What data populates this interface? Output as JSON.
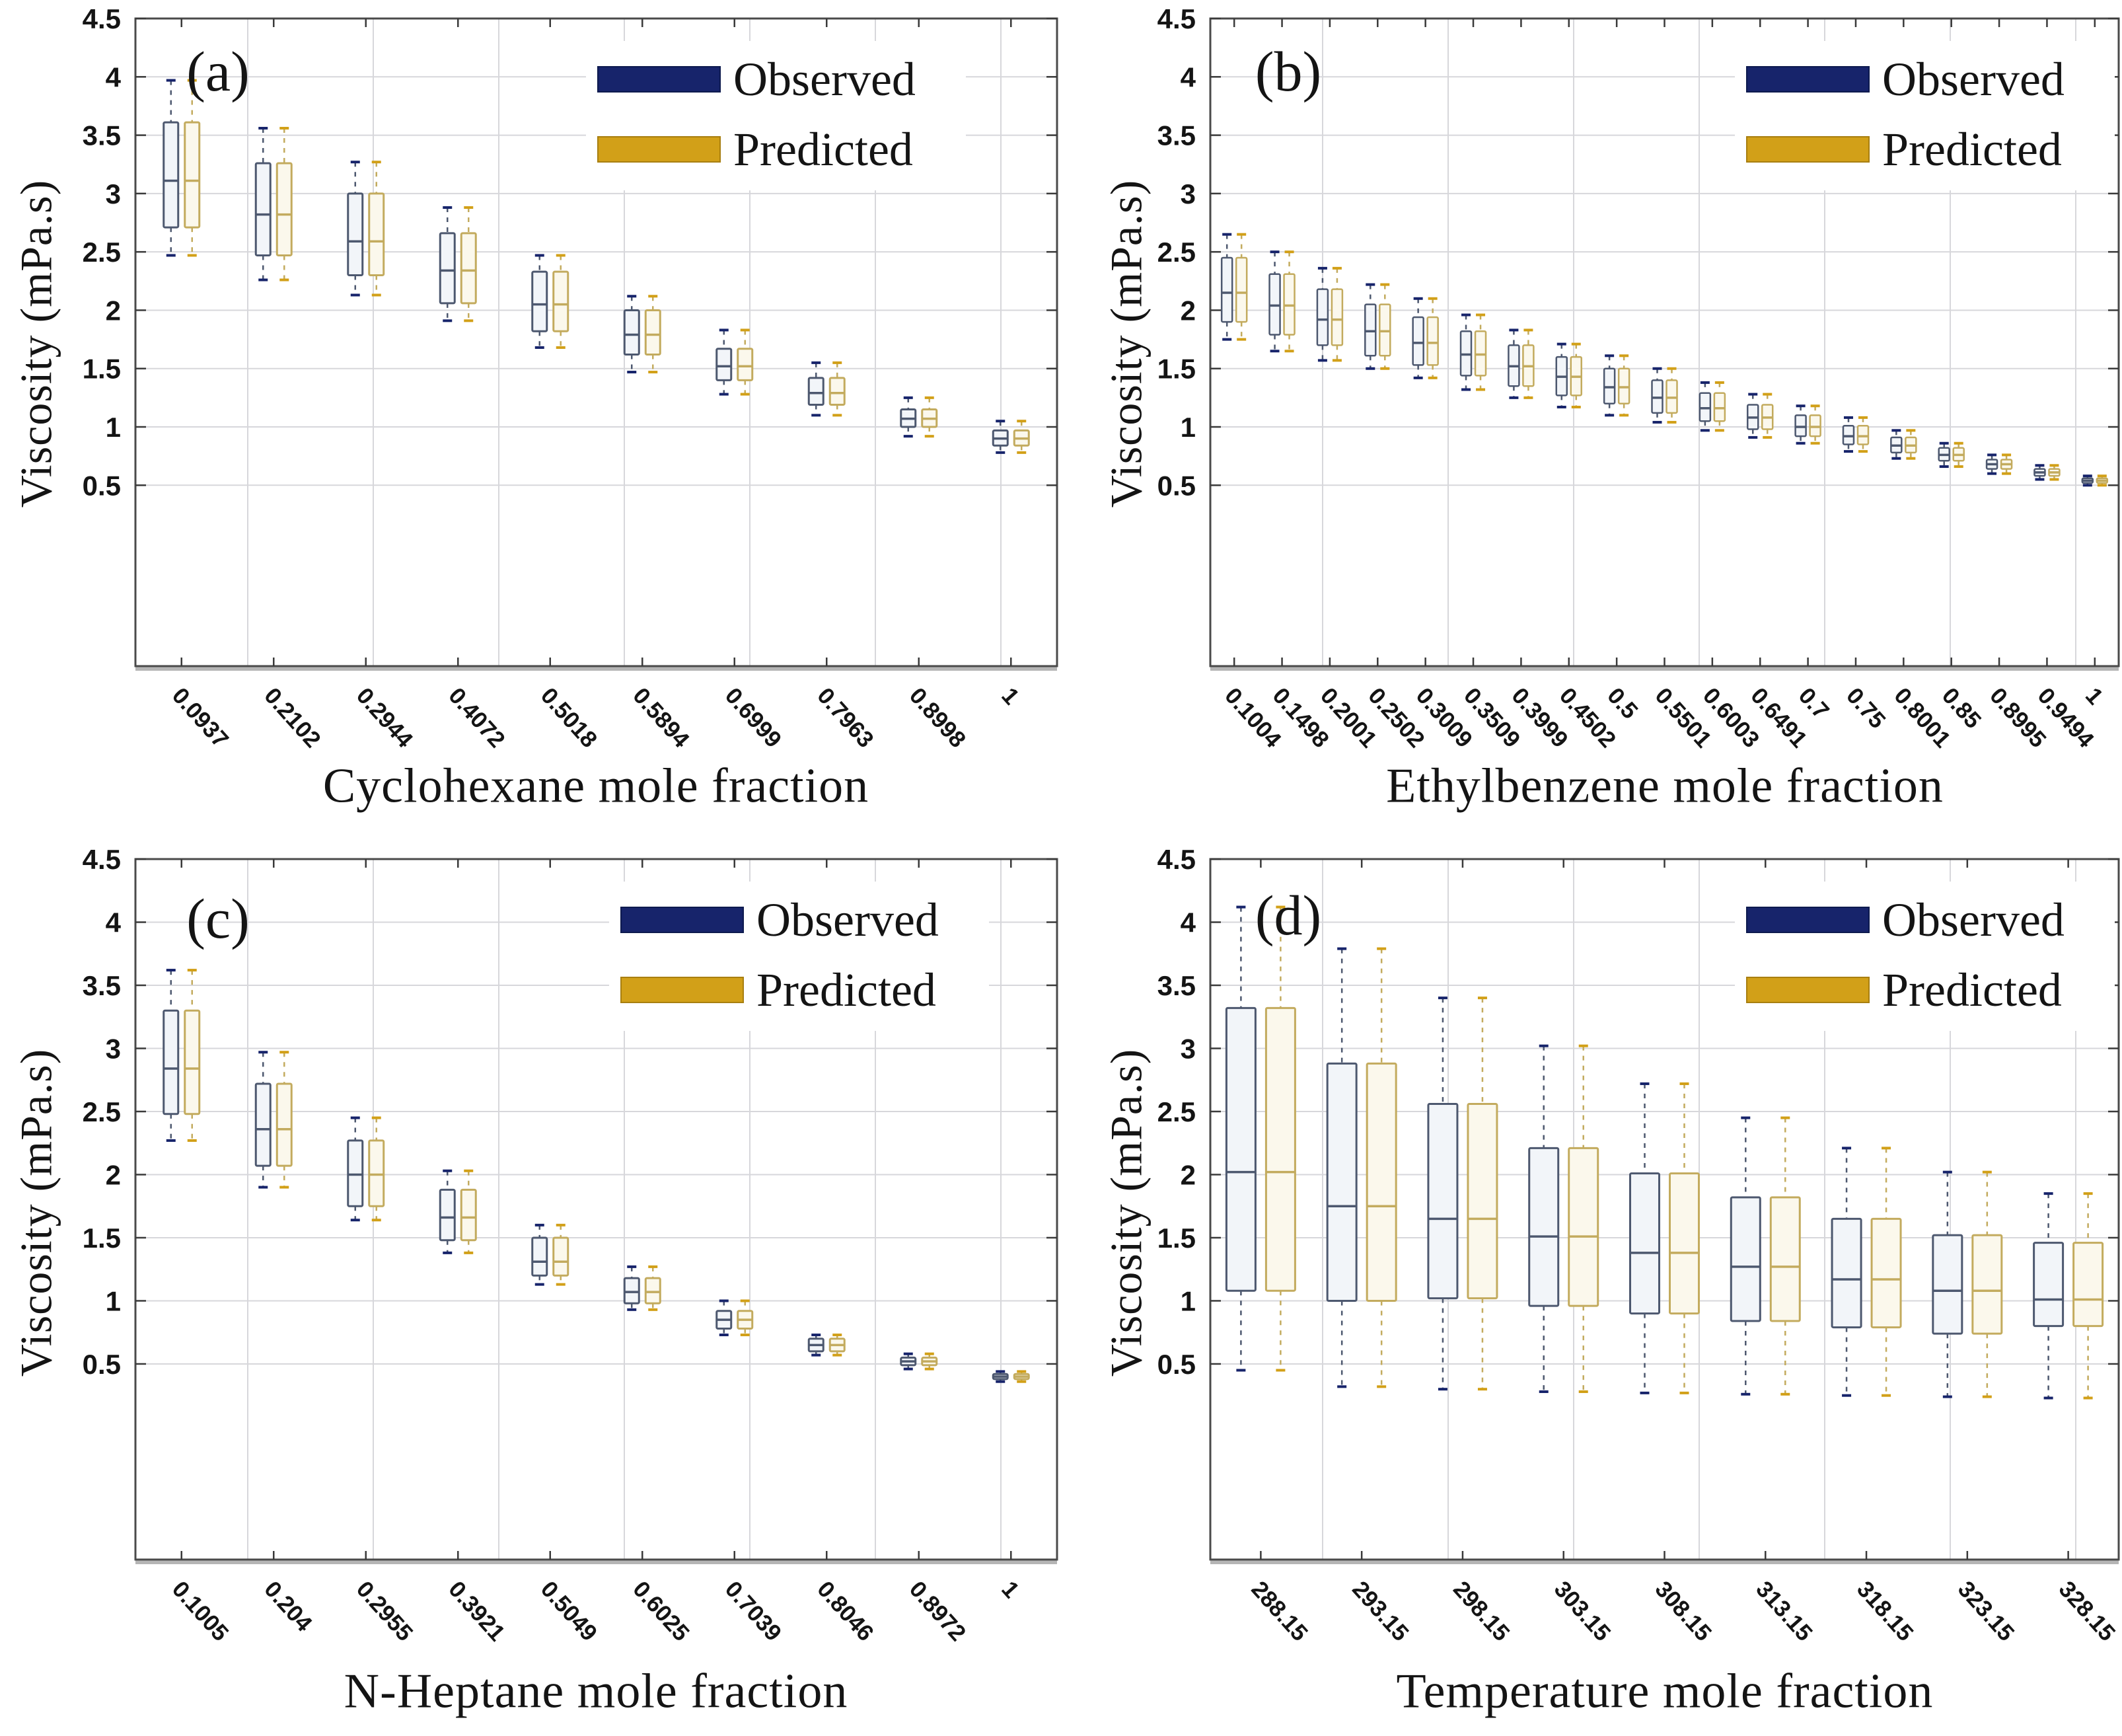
{
  "figure": {
    "background": "#ffffff",
    "legend": {
      "observed_label": "Observed",
      "predicted_label": "Predicted"
    },
    "colors": {
      "observed_solid": "#17246b",
      "predicted_solid": "#d2a018",
      "observed_box_border": "#4d586f",
      "predicted_box_border": "#c3ab5e",
      "observed_box_fill": "#f2f5f9",
      "predicted_box_fill": "#fbf8ec",
      "grid": "#d7d7db",
      "frame": "#4a4a4a",
      "axis_shadow": "#b5b5b5",
      "tick": "#3a3a3a",
      "text": "#141414"
    }
  },
  "chart_data": [
    {
      "id": "a",
      "type": "boxplot",
      "panel_label": "(a)",
      "ylabel": "Viscosity (mPa.s)",
      "xlabel": "Cyclohexane mole fraction",
      "ylim": [
        -1.05,
        4.5
      ],
      "yticks": [
        0.5,
        1,
        1.5,
        2,
        2.5,
        3,
        3.5,
        4,
        4.5
      ],
      "grid": "on",
      "legend_position": "top-right",
      "series": [
        "Observed",
        "Predicted"
      ],
      "series_share_values": true,
      "categories": [
        "0.0937",
        "0.2102",
        "0.2944",
        "0.4072",
        "0.5018",
        "0.5894",
        "0.6999",
        "0.7963",
        "0.8998",
        "1"
      ],
      "boxes": [
        {
          "lo": 2.47,
          "q1": 2.71,
          "med": 3.11,
          "q3": 3.61,
          "hi": 3.97
        },
        {
          "lo": 2.26,
          "q1": 2.47,
          "med": 2.82,
          "q3": 3.26,
          "hi": 3.56
        },
        {
          "lo": 2.13,
          "q1": 2.3,
          "med": 2.59,
          "q3": 3.0,
          "hi": 3.27
        },
        {
          "lo": 1.91,
          "q1": 2.06,
          "med": 2.34,
          "q3": 2.66,
          "hi": 2.88
        },
        {
          "lo": 1.68,
          "q1": 1.82,
          "med": 2.05,
          "q3": 2.33,
          "hi": 2.47
        },
        {
          "lo": 1.47,
          "q1": 1.62,
          "med": 1.79,
          "q3": 2.0,
          "hi": 2.12
        },
        {
          "lo": 1.28,
          "q1": 1.4,
          "med": 1.52,
          "q3": 1.67,
          "hi": 1.83
        },
        {
          "lo": 1.1,
          "q1": 1.19,
          "med": 1.29,
          "q3": 1.42,
          "hi": 1.55
        },
        {
          "lo": 0.92,
          "q1": 1.0,
          "med": 1.07,
          "q3": 1.15,
          "hi": 1.25
        },
        {
          "lo": 0.78,
          "q1": 0.84,
          "med": 0.9,
          "q3": 0.97,
          "hi": 1.05
        }
      ]
    },
    {
      "id": "b",
      "type": "boxplot",
      "panel_label": "(b)",
      "ylabel": "Viscosity (mPa.s)",
      "xlabel": "Ethylbenzene mole fraction",
      "ylim": [
        -1.05,
        4.5
      ],
      "yticks": [
        0.5,
        1,
        1.5,
        2,
        2.5,
        3,
        3.5,
        4,
        4.5
      ],
      "grid": "on",
      "legend_position": "top-right",
      "series": [
        "Observed",
        "Predicted"
      ],
      "series_share_values": true,
      "categories": [
        "0.1004",
        "0.1498",
        "0.2001",
        "0.2502",
        "0.3009",
        "0.3509",
        "0.3999",
        "0.4502",
        "0.5",
        "0.5501",
        "0.6003",
        "0.6491",
        "0.7",
        "0.75",
        "0.8001",
        "0.85",
        "0.8995",
        "0.9494",
        "1"
      ],
      "boxes": [
        {
          "lo": 1.75,
          "q1": 1.9,
          "med": 2.15,
          "q3": 2.45,
          "hi": 2.65
        },
        {
          "lo": 1.65,
          "q1": 1.79,
          "med": 2.04,
          "q3": 2.31,
          "hi": 2.5
        },
        {
          "lo": 1.57,
          "q1": 1.7,
          "med": 1.92,
          "q3": 2.18,
          "hi": 2.36
        },
        {
          "lo": 1.5,
          "q1": 1.61,
          "med": 1.82,
          "q3": 2.05,
          "hi": 2.22
        },
        {
          "lo": 1.42,
          "q1": 1.53,
          "med": 1.72,
          "q3": 1.94,
          "hi": 2.1
        },
        {
          "lo": 1.32,
          "q1": 1.44,
          "med": 1.62,
          "q3": 1.82,
          "hi": 1.96
        },
        {
          "lo": 1.25,
          "q1": 1.35,
          "med": 1.52,
          "q3": 1.7,
          "hi": 1.83
        },
        {
          "lo": 1.17,
          "q1": 1.27,
          "med": 1.43,
          "q3": 1.6,
          "hi": 1.71
        },
        {
          "lo": 1.1,
          "q1": 1.2,
          "med": 1.34,
          "q3": 1.5,
          "hi": 1.61
        },
        {
          "lo": 1.04,
          "q1": 1.12,
          "med": 1.25,
          "q3": 1.4,
          "hi": 1.5
        },
        {
          "lo": 0.97,
          "q1": 1.05,
          "med": 1.16,
          "q3": 1.29,
          "hi": 1.38
        },
        {
          "lo": 0.91,
          "q1": 0.98,
          "med": 1.08,
          "q3": 1.19,
          "hi": 1.28
        },
        {
          "lo": 0.86,
          "q1": 0.92,
          "med": 1.0,
          "q3": 1.1,
          "hi": 1.18
        },
        {
          "lo": 0.79,
          "q1": 0.85,
          "med": 0.92,
          "q3": 1.01,
          "hi": 1.08
        },
        {
          "lo": 0.73,
          "q1": 0.78,
          "med": 0.84,
          "q3": 0.91,
          "hi": 0.97
        },
        {
          "lo": 0.66,
          "q1": 0.71,
          "med": 0.76,
          "q3": 0.82,
          "hi": 0.86
        },
        {
          "lo": 0.6,
          "q1": 0.64,
          "med": 0.68,
          "q3": 0.72,
          "hi": 0.76
        },
        {
          "lo": 0.55,
          "q1": 0.58,
          "med": 0.61,
          "q3": 0.64,
          "hi": 0.67
        },
        {
          "lo": 0.5,
          "q1": 0.52,
          "med": 0.54,
          "q3": 0.56,
          "hi": 0.58
        }
      ]
    },
    {
      "id": "c",
      "type": "boxplot",
      "panel_label": "(c)",
      "ylabel": "Viscosity (mPa.s)",
      "xlabel": "N-Heptane mole fraction",
      "ylim": [
        -1.05,
        4.5
      ],
      "yticks": [
        0.5,
        1,
        1.5,
        2,
        2.5,
        3,
        3.5,
        4,
        4.5
      ],
      "grid": "on",
      "legend_position": "top-right",
      "series": [
        "Observed",
        "Predicted"
      ],
      "series_share_values": true,
      "categories": [
        "0.1005",
        "0.204",
        "0.2955",
        "0.3921",
        "0.5049",
        "0.6025",
        "0.7039",
        "0.8046",
        "0.8972",
        "1"
      ],
      "boxes": [
        {
          "lo": 2.27,
          "q1": 2.48,
          "med": 2.84,
          "q3": 3.3,
          "hi": 3.62
        },
        {
          "lo": 1.9,
          "q1": 2.07,
          "med": 2.36,
          "q3": 2.72,
          "hi": 2.97
        },
        {
          "lo": 1.64,
          "q1": 1.75,
          "med": 2.0,
          "q3": 2.27,
          "hi": 2.45
        },
        {
          "lo": 1.38,
          "q1": 1.48,
          "med": 1.66,
          "q3": 1.88,
          "hi": 2.03
        },
        {
          "lo": 1.13,
          "q1": 1.2,
          "med": 1.31,
          "q3": 1.5,
          "hi": 1.6
        },
        {
          "lo": 0.93,
          "q1": 0.98,
          "med": 1.07,
          "q3": 1.18,
          "hi": 1.27
        },
        {
          "lo": 0.73,
          "q1": 0.78,
          "med": 0.85,
          "q3": 0.92,
          "hi": 1.0
        },
        {
          "lo": 0.57,
          "q1": 0.6,
          "med": 0.65,
          "q3": 0.7,
          "hi": 0.73
        },
        {
          "lo": 0.46,
          "q1": 0.49,
          "med": 0.52,
          "q3": 0.55,
          "hi": 0.58
        },
        {
          "lo": 0.36,
          "q1": 0.38,
          "med": 0.4,
          "q3": 0.42,
          "hi": 0.44
        }
      ]
    },
    {
      "id": "d",
      "type": "boxplot",
      "panel_label": "(d)",
      "ylabel": "Viscosity (mPa.s)",
      "xlabel": "Temperature mole fraction",
      "ylim": [
        -1.05,
        4.5
      ],
      "yticks": [
        0.5,
        1,
        1.5,
        2,
        2.5,
        3,
        3.5,
        4,
        4.5
      ],
      "grid": "on",
      "legend_position": "top-right",
      "series": [
        "Observed",
        "Predicted"
      ],
      "series_share_values": true,
      "categories": [
        "288.15",
        "293.15",
        "298.15",
        "303.15",
        "308.15",
        "313.15",
        "318.15",
        "323.15",
        "328.15"
      ],
      "boxes": [
        {
          "lo": 0.45,
          "q1": 1.08,
          "med": 2.02,
          "q3": 3.32,
          "hi": 4.12
        },
        {
          "lo": 0.32,
          "q1": 1.0,
          "med": 1.75,
          "q3": 2.88,
          "hi": 3.79
        },
        {
          "lo": 0.3,
          "q1": 1.02,
          "med": 1.65,
          "q3": 2.56,
          "hi": 3.4
        },
        {
          "lo": 0.28,
          "q1": 0.96,
          "med": 1.51,
          "q3": 2.21,
          "hi": 3.02
        },
        {
          "lo": 0.27,
          "q1": 0.9,
          "med": 1.38,
          "q3": 2.01,
          "hi": 2.72
        },
        {
          "lo": 0.26,
          "q1": 0.84,
          "med": 1.27,
          "q3": 1.82,
          "hi": 2.45
        },
        {
          "lo": 0.25,
          "q1": 0.79,
          "med": 1.17,
          "q3": 1.65,
          "hi": 2.21
        },
        {
          "lo": 0.24,
          "q1": 0.74,
          "med": 1.08,
          "q3": 1.52,
          "hi": 2.02
        },
        {
          "lo": 0.23,
          "q1": 0.8,
          "med": 1.01,
          "q3": 1.46,
          "hi": 1.85
        }
      ]
    }
  ]
}
